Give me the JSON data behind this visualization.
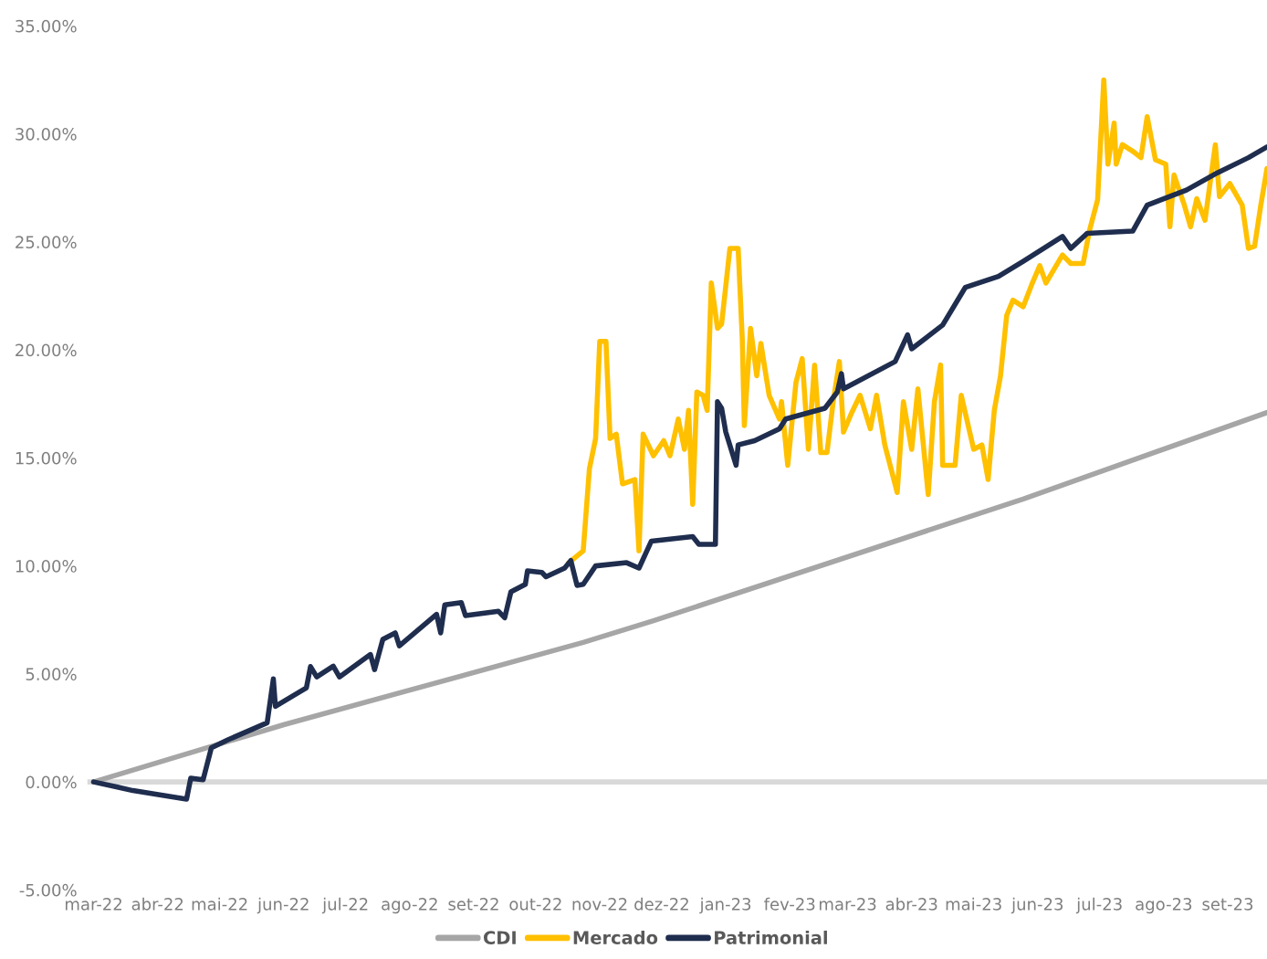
{
  "chart_data": {
    "type": "line",
    "series": [
      {
        "name": "CDI",
        "color": "#a6a6a6",
        "x": [
          "2022-03-01",
          "2022-06-01",
          "2022-10-24",
          "2022-11-27",
          "2023-05-25",
          "2023-09-20"
        ],
        "values": [
          0,
          2.65,
          6.46,
          7.46,
          13.1,
          17.1
        ]
      },
      {
        "name": "Mercado",
        "color": "#ffc000",
        "x": [
          "2022-10-17",
          "2022-10-24",
          "2022-10-27",
          "2022-10-30",
          "2022-11-01",
          "2022-11-04",
          "2022-11-06",
          "2022-11-09",
          "2022-11-12",
          "2022-11-18",
          "2022-11-20",
          "2022-11-22",
          "2022-11-27",
          "2022-12-02",
          "2022-12-05",
          "2022-12-09",
          "2022-12-12",
          "2022-12-14",
          "2022-12-16",
          "2022-12-18",
          "2022-12-21",
          "2022-12-23",
          "2022-12-25",
          "2022-12-28",
          "2022-12-30",
          "2023-01-03",
          "2023-01-07",
          "2023-01-09",
          "2023-01-10",
          "2023-01-13",
          "2023-01-16",
          "2023-01-18",
          "2023-01-22",
          "2023-01-27",
          "2023-01-28",
          "2023-01-31",
          "2023-02-04",
          "2023-02-07",
          "2023-02-10",
          "2023-02-13",
          "2023-02-16",
          "2023-02-19",
          "2023-02-22",
          "2023-02-25",
          "2023-02-27",
          "2023-03-03",
          "2023-03-07",
          "2023-03-12",
          "2023-03-15",
          "2023-03-19",
          "2023-03-22",
          "2023-03-25",
          "2023-03-28",
          "2023-04-01",
          "2023-04-04",
          "2023-04-09",
          "2023-04-12",
          "2023-04-15",
          "2023-04-16",
          "2023-04-22",
          "2023-04-25",
          "2023-05-01",
          "2023-05-05",
          "2023-05-08",
          "2023-05-11",
          "2023-05-14",
          "2023-05-17",
          "2023-05-20",
          "2023-05-25",
          "2023-05-29",
          "2023-06-02",
          "2023-06-05",
          "2023-06-13",
          "2023-06-17",
          "2023-06-23",
          "2023-06-26",
          "2023-06-30",
          "2023-07-03",
          "2023-07-05",
          "2023-07-08",
          "2023-07-09",
          "2023-07-12",
          "2023-07-17",
          "2023-07-21",
          "2023-07-24",
          "2023-07-28",
          "2023-08-02",
          "2023-08-04",
          "2023-08-06",
          "2023-08-11",
          "2023-08-14",
          "2023-08-17",
          "2023-08-21",
          "2023-08-26",
          "2023-08-28",
          "2023-09-02",
          "2023-09-08",
          "2023-09-11",
          "2023-09-14",
          "2023-09-17",
          "2023-09-20"
        ],
        "values": [
          10.15,
          10.7,
          14.5,
          15.9,
          20.4,
          20.4,
          15.9,
          16.1,
          13.8,
          14,
          10.7,
          16.1,
          15.1,
          15.8,
          15.1,
          16.8,
          15.4,
          17.2,
          12.85,
          18.05,
          17.9,
          17.2,
          23.1,
          21,
          21.2,
          24.7,
          24.7,
          20.5,
          16.5,
          21,
          18.8,
          20.3,
          17.9,
          16.8,
          17.6,
          14.66,
          18.5,
          19.6,
          15.4,
          19.3,
          15.25,
          15.25,
          17.6,
          19.46,
          16.2,
          17.1,
          17.9,
          16.35,
          17.9,
          15.6,
          14.5,
          13.4,
          17.6,
          15.4,
          18.2,
          13.3,
          17.6,
          19.3,
          14.66,
          14.66,
          17.9,
          15.4,
          15.6,
          14,
          17.2,
          18.8,
          21.6,
          22.3,
          22,
          23,
          23.9,
          23.1,
          24.4,
          24,
          24,
          25.5,
          26.95,
          32.5,
          28.6,
          30.5,
          28.6,
          29.5,
          29.2,
          28.9,
          30.8,
          28.8,
          28.6,
          25.7,
          28.1,
          26.7,
          25.7,
          27,
          26,
          29.5,
          27.1,
          27.7,
          26.7,
          24.7,
          24.8,
          26.7,
          28.4
        ]
      },
      {
        "name": "Patrimonial",
        "color": "#1f2d4e",
        "x": [
          "2022-03-01",
          "2022-03-12",
          "2022-03-20",
          "2022-04-15",
          "2022-04-17",
          "2022-04-23",
          "2022-04-27",
          "2022-05-05",
          "2022-05-24",
          "2022-05-27",
          "2022-05-28",
          "2022-06-12",
          "2022-06-14",
          "2022-06-17",
          "2022-06-25",
          "2022-06-28",
          "2022-07-13",
          "2022-07-15",
          "2022-07-19",
          "2022-07-25",
          "2022-07-27",
          "2022-08-14",
          "2022-08-16",
          "2022-08-18",
          "2022-08-26",
          "2022-08-28",
          "2022-09-13",
          "2022-09-16",
          "2022-09-19",
          "2022-09-26",
          "2022-09-27",
          "2022-10-04",
          "2022-10-06",
          "2022-10-15",
          "2022-10-18",
          "2022-10-21",
          "2022-10-24",
          "2022-10-30",
          "2022-11-14",
          "2022-11-20",
          "2022-11-26",
          "2022-12-16",
          "2022-12-19",
          "2022-12-27",
          "2022-12-28",
          "2022-12-30",
          "2023-01-01",
          "2023-01-06",
          "2023-01-07",
          "2023-01-15",
          "2023-01-27",
          "2023-01-30",
          "2023-02-18",
          "2023-02-24",
          "2023-02-26",
          "2023-02-27",
          "2023-03-24",
          "2023-03-30",
          "2023-04-01",
          "2023-04-16",
          "2023-04-27",
          "2023-05-13",
          "2023-05-25",
          "2023-06-13",
          "2023-06-17",
          "2023-06-25",
          "2023-07-17",
          "2023-07-24",
          "2023-08-12",
          "2023-08-27",
          "2023-09-11",
          "2023-09-20"
        ],
        "values": [
          0,
          -0.23,
          -0.4,
          -0.8,
          0.17,
          0.1,
          1.58,
          1.95,
          2.74,
          4.77,
          3.5,
          4.36,
          5.34,
          4.86,
          5.36,
          4.86,
          5.9,
          5.2,
          6.6,
          6.9,
          6.3,
          7.76,
          6.9,
          8.2,
          8.3,
          7.7,
          7.9,
          7.6,
          8.8,
          9.15,
          9.77,
          9.7,
          9.5,
          9.9,
          10.25,
          9.1,
          9.15,
          10,
          10.15,
          9.9,
          11.15,
          11.36,
          11,
          11,
          17.6,
          17.3,
          16.2,
          14.66,
          15.6,
          15.8,
          16.35,
          16.8,
          17.3,
          18.05,
          18.9,
          18.2,
          19.46,
          20.7,
          20.05,
          21.15,
          22.9,
          23.4,
          24.1,
          25.25,
          24.7,
          25.4,
          25.5,
          26.7,
          27.4,
          28.2,
          28.9,
          29.4
        ]
      }
    ],
    "xlim": [
      "2022-02-26",
      "2023-09-20"
    ],
    "xticks": [
      {
        "value": "2022-03-01",
        "label": "mar-22"
      },
      {
        "value": "2022-04-01",
        "label": "abr-22"
      },
      {
        "value": "2022-05-01",
        "label": "mai-22"
      },
      {
        "value": "2022-06-01",
        "label": "jun-22"
      },
      {
        "value": "2022-07-01",
        "label": "jul-22"
      },
      {
        "value": "2022-08-01",
        "label": "ago-22"
      },
      {
        "value": "2022-09-01",
        "label": "set-22"
      },
      {
        "value": "2022-10-01",
        "label": "out-22"
      },
      {
        "value": "2022-11-01",
        "label": "nov-22"
      },
      {
        "value": "2022-12-01",
        "label": "dez-22"
      },
      {
        "value": "2023-01-01",
        "label": "jan-23"
      },
      {
        "value": "2023-02-01",
        "label": "fev-23"
      },
      {
        "value": "2023-03-01",
        "label": "mar-23"
      },
      {
        "value": "2023-04-01",
        "label": "abr-23"
      },
      {
        "value": "2023-05-01",
        "label": "mai-23"
      },
      {
        "value": "2023-06-01",
        "label": "jun-23"
      },
      {
        "value": "2023-07-01",
        "label": "jul-23"
      },
      {
        "value": "2023-08-01",
        "label": "ago-23"
      },
      {
        "value": "2023-09-01",
        "label": "set-23"
      }
    ],
    "ylim": [
      -5,
      35
    ],
    "yticks": [
      {
        "value": -5,
        "label": "-5.00%"
      },
      {
        "value": 0,
        "label": "0.00%"
      },
      {
        "value": 5,
        "label": "5.00%"
      },
      {
        "value": 10,
        "label": "10.00%"
      },
      {
        "value": 15,
        "label": "15.00%"
      },
      {
        "value": 20,
        "label": "20.00%"
      },
      {
        "value": 25,
        "label": "25.00%"
      },
      {
        "value": 30,
        "label": "30.00%"
      },
      {
        "value": 35,
        "label": "35.00%"
      }
    ],
    "ref_lines": [
      {
        "axis": "y",
        "value": 0,
        "color": "#d9d9d9"
      }
    ],
    "grid": false,
    "legend": "bottom",
    "marker": "none",
    "line_style": "solid"
  }
}
